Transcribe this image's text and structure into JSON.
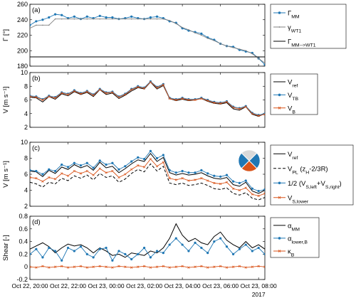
{
  "figure": {
    "year_label": "2017",
    "xticks": [
      "Oct 22, 20:00",
      "Oct 22, 22:00",
      "Oct 23, 00:00",
      "Oct 23, 02:00",
      "Oct 23, 04:00",
      "Oct 23, 06:00",
      "Oct 23, 08:00"
    ]
  },
  "colors": {
    "blue": "#1f77b4",
    "orange": "#d95319",
    "black": "#000000",
    "gray": "#808080"
  },
  "chart_data": [
    {
      "panel": "(a)",
      "type": "line",
      "ylabel": "Γ [°]",
      "ylim": [
        180,
        260
      ],
      "yticks": [
        "180",
        "200",
        "220",
        "240",
        "260"
      ],
      "xlim": [
        0,
        12.33
      ],
      "x_unit": "hours after Oct 22, 20:00",
      "legend": [
        "Γ_MM",
        "γ_WT1",
        "Γ_MM→WT1"
      ],
      "series": [
        {
          "name": "Γ_MM",
          "color": "blue",
          "marker": "dot",
          "x": [
            0,
            0.33,
            0.67,
            1,
            1.33,
            1.67,
            2,
            2.33,
            2.67,
            3,
            3.33,
            3.67,
            4,
            4.33,
            4.67,
            5,
            5.33,
            5.67,
            6,
            6.33,
            6.67,
            7,
            7.33,
            7.67,
            8,
            8.33,
            8.67,
            9,
            9.33,
            9.67,
            10,
            10.33,
            10.67,
            11,
            11.33,
            11.67,
            12,
            12.33
          ],
          "y": [
            233,
            238,
            240,
            243,
            247,
            246,
            242,
            244,
            241,
            244,
            242,
            245,
            243,
            243,
            241,
            242,
            244,
            242,
            241,
            243,
            244,
            242,
            238,
            236,
            229,
            226,
            224,
            222,
            217,
            214,
            209,
            206,
            205,
            201,
            199,
            197,
            190,
            182
          ]
        },
        {
          "name": "γ_WT1",
          "color": "gray",
          "marker": "small-dot",
          "x": [
            0,
            0.33,
            0.67,
            1,
            1.33,
            1.67,
            2,
            2.33,
            2.67,
            3,
            3.33,
            3.67,
            4,
            4.33,
            4.67,
            5,
            5.33,
            5.67,
            6,
            6.33,
            6.67,
            7,
            7.33,
            7.67,
            8,
            8.33,
            8.67,
            9,
            9.33,
            9.67,
            10,
            10.33,
            10.67,
            11,
            11.33,
            11.67,
            12,
            12.33
          ],
          "y": [
            229,
            233,
            233,
            233,
            241,
            241,
            241,
            241,
            241,
            241,
            241,
            241,
            241,
            241,
            241,
            241,
            241,
            241,
            241,
            241,
            241,
            241,
            239,
            235,
            230,
            227,
            223,
            220,
            216,
            213,
            209,
            206,
            204,
            202,
            200,
            196,
            190,
            184
          ]
        },
        {
          "name": "Γ_MM→WT1",
          "color": "black",
          "marker": "none",
          "x": [
            0,
            12.33
          ],
          "y": [
            192,
            192
          ]
        }
      ]
    },
    {
      "panel": "(b)",
      "type": "line",
      "ylabel": "V [m s⁻¹]",
      "ylim": [
        2,
        10
      ],
      "yticks": [
        "2",
        "4",
        "6",
        "8",
        "10"
      ],
      "xlim": [
        0,
        12.33
      ],
      "legend": [
        "V_ref",
        "V_TB",
        "V_B"
      ],
      "series": [
        {
          "name": "V_ref",
          "color": "black",
          "marker": "none",
          "x": [
            0,
            0.33,
            0.67,
            1,
            1.33,
            1.67,
            2,
            2.33,
            2.67,
            3,
            3.33,
            3.67,
            4,
            4.33,
            4.67,
            5,
            5.33,
            5.67,
            6,
            6.33,
            6.67,
            7,
            7.33,
            7.67,
            8,
            8.33,
            8.67,
            9,
            9.33,
            9.67,
            10,
            10.33,
            10.67,
            11,
            11.33,
            11.67,
            12,
            12.33
          ],
          "y": [
            6.4,
            6.3,
            5.7,
            6.5,
            6.1,
            6.9,
            6.6,
            7.2,
            6.8,
            7.1,
            6.5,
            7.5,
            6.8,
            7.0,
            6.2,
            6.7,
            7.3,
            7.8,
            7.6,
            8.6,
            7.6,
            8.1,
            6.2,
            5.9,
            6.1,
            5.9,
            6.0,
            6.2,
            5.8,
            5.5,
            5.4,
            5.6,
            4.7,
            4.5,
            5.0,
            3.9,
            3.6,
            4.0
          ]
        },
        {
          "name": "V_TB",
          "color": "blue",
          "marker": "dot",
          "x": [
            0,
            0.33,
            0.67,
            1,
            1.33,
            1.67,
            2,
            2.33,
            2.67,
            3,
            3.33,
            3.67,
            4,
            4.33,
            4.67,
            5,
            5.33,
            5.67,
            6,
            6.33,
            6.67,
            7,
            7.33,
            7.67,
            8,
            8.33,
            8.67,
            9,
            9.33,
            9.67,
            10,
            10.33,
            10.67,
            11,
            11.33,
            11.67,
            12,
            12.33
          ],
          "y": [
            6.6,
            6.5,
            6.1,
            6.6,
            6.4,
            7.1,
            6.9,
            7.4,
            7.0,
            7.3,
            6.8,
            7.6,
            7.1,
            7.2,
            6.5,
            6.9,
            7.6,
            8.0,
            7.8,
            8.7,
            7.9,
            8.3,
            6.3,
            6.1,
            6.3,
            6.1,
            6.1,
            6.3,
            6.0,
            5.7,
            5.6,
            5.8,
            5.0,
            4.8,
            5.1,
            4.1,
            3.8,
            4.0
          ]
        },
        {
          "name": "V_B",
          "color": "orange",
          "marker": "cross",
          "x": [
            0,
            0.33,
            0.67,
            1,
            1.33,
            1.67,
            2,
            2.33,
            2.67,
            3,
            3.33,
            3.67,
            4,
            4.33,
            4.67,
            5,
            5.33,
            5.67,
            6,
            6.33,
            6.67,
            7,
            7.33,
            7.67,
            8,
            8.33,
            8.67,
            9,
            9.33,
            9.67,
            10,
            10.33,
            10.67,
            11,
            11.33,
            11.67,
            12,
            12.33
          ],
          "y": [
            6.5,
            6.4,
            6.0,
            6.5,
            6.3,
            7.0,
            6.8,
            7.3,
            6.9,
            7.2,
            6.7,
            7.5,
            7.0,
            7.1,
            6.4,
            6.8,
            7.5,
            7.9,
            7.7,
            8.6,
            7.8,
            8.2,
            6.2,
            6.0,
            6.2,
            6.0,
            6.0,
            6.2,
            5.9,
            5.6,
            5.5,
            5.7,
            4.9,
            4.7,
            5.0,
            4.0,
            3.7,
            3.9
          ]
        }
      ]
    },
    {
      "panel": "(c)",
      "type": "line",
      "ylabel": "V [m s⁻¹]",
      "ylim": [
        2,
        10
      ],
      "yticks": [
        "2",
        "4",
        "6",
        "8",
        "10"
      ],
      "xlim": [
        0,
        12.33
      ],
      "legend": [
        "V_ref",
        "V_PL (z_H-2/3R)",
        "1/2 (V_S,left+V_S,right)",
        "V_S,lower"
      ],
      "series": [
        {
          "name": "V_ref",
          "color": "black",
          "marker": "none",
          "dash": "solid",
          "x": [
            0,
            0.33,
            0.67,
            1,
            1.33,
            1.67,
            2,
            2.33,
            2.67,
            3,
            3.33,
            3.67,
            4,
            4.33,
            4.67,
            5,
            5.33,
            5.67,
            6,
            6.33,
            6.67,
            7,
            7.33,
            7.67,
            8,
            8.33,
            8.67,
            9,
            9.33,
            9.67,
            10,
            10.33,
            10.67,
            11,
            11.33,
            11.67,
            12,
            12.33
          ],
          "y": [
            6.4,
            6.3,
            5.7,
            6.5,
            6.1,
            6.9,
            6.6,
            7.2,
            6.8,
            7.1,
            6.5,
            7.5,
            6.8,
            7.0,
            6.2,
            6.7,
            7.3,
            7.8,
            7.6,
            8.6,
            7.6,
            8.1,
            6.2,
            5.9,
            6.1,
            5.9,
            6.0,
            6.2,
            5.8,
            5.5,
            5.4,
            5.6,
            4.7,
            4.5,
            5.0,
            3.9,
            3.6,
            4.0
          ]
        },
        {
          "name": "V_PL (z_H-2/3R)",
          "color": "black",
          "marker": "none",
          "dash": "dashed",
          "x": [
            0,
            0.33,
            0.67,
            1,
            1.33,
            1.67,
            2,
            2.33,
            2.67,
            3,
            3.33,
            3.67,
            4,
            4.33,
            4.67,
            5,
            5.33,
            5.67,
            6,
            6.33,
            6.67,
            7,
            7.33,
            7.67,
            8,
            8.33,
            8.67,
            9,
            9.33,
            9.67,
            10,
            10.33,
            10.67,
            11,
            11.33,
            11.67,
            12,
            12.33
          ],
          "y": [
            5.0,
            4.8,
            4.4,
            5.0,
            4.8,
            5.5,
            5.2,
            5.8,
            5.5,
            5.9,
            5.3,
            6.1,
            5.6,
            5.8,
            5.0,
            5.4,
            6.1,
            6.6,
            6.3,
            7.3,
            6.4,
            7.0,
            4.9,
            4.7,
            4.9,
            4.6,
            4.7,
            4.9,
            4.6,
            4.2,
            4.1,
            4.3,
            3.6,
            3.4,
            3.7,
            3.0,
            2.8,
            3.1
          ]
        },
        {
          "name": "1/2 (V_S,left+V_S,right)",
          "color": "blue",
          "marker": "dot",
          "dash": "solid",
          "x": [
            0,
            0.33,
            0.67,
            1,
            1.33,
            1.67,
            2,
            2.33,
            2.67,
            3,
            3.33,
            3.67,
            4,
            4.33,
            4.67,
            5,
            5.33,
            5.67,
            6,
            6.33,
            6.67,
            7,
            7.33,
            7.67,
            8,
            8.33,
            8.67,
            9,
            9.33,
            9.67,
            10,
            10.33,
            10.67,
            11,
            11.33,
            11.67,
            12,
            12.33
          ],
          "y": [
            6.5,
            6.4,
            6.0,
            6.6,
            6.4,
            7.2,
            6.9,
            7.4,
            7.1,
            7.4,
            6.8,
            7.7,
            7.2,
            7.4,
            6.6,
            7.0,
            7.6,
            8.1,
            7.9,
            8.9,
            8.0,
            8.4,
            6.5,
            6.2,
            6.4,
            6.2,
            6.2,
            6.5,
            6.1,
            5.8,
            5.7,
            5.9,
            5.1,
            4.9,
            5.2,
            4.2,
            3.9,
            4.1
          ]
        },
        {
          "name": "V_S,lower",
          "color": "orange",
          "marker": "cross",
          "dash": "solid",
          "x": [
            0,
            0.33,
            0.67,
            1,
            1.33,
            1.67,
            2,
            2.33,
            2.67,
            3,
            3.33,
            3.67,
            4,
            4.33,
            4.67,
            5,
            5.33,
            5.67,
            6,
            6.33,
            6.67,
            7,
            7.33,
            7.67,
            8,
            8.33,
            8.67,
            9,
            9.33,
            9.67,
            10,
            10.33,
            10.67,
            11,
            11.33,
            11.67,
            12,
            12.33
          ],
          "y": [
            5.6,
            5.5,
            5.1,
            5.6,
            5.4,
            6.1,
            5.8,
            6.4,
            6.1,
            6.4,
            5.9,
            6.7,
            6.2,
            6.4,
            5.6,
            6.0,
            6.6,
            7.1,
            6.9,
            7.9,
            7.0,
            7.5,
            5.5,
            5.3,
            5.5,
            5.2,
            5.3,
            5.5,
            5.2,
            4.9,
            4.8,
            5.0,
            4.2,
            4.0,
            4.3,
            3.5,
            3.3,
            3.6
          ]
        }
      ]
    },
    {
      "panel": "(d)",
      "type": "line",
      "ylabel": "Shear [-]",
      "ylim": [
        -0.2,
        0.8
      ],
      "yticks": [
        "-0.2",
        "0",
        "0.2",
        "0.4",
        "0.6",
        "0.8"
      ],
      "xlim": [
        0,
        12.33
      ],
      "legend": [
        "α_MM",
        "α_lower,B",
        "κ_B"
      ],
      "series": [
        {
          "name": "α_MM",
          "color": "black",
          "marker": "none",
          "x": [
            0,
            0.33,
            0.67,
            1,
            1.33,
            1.67,
            2,
            2.33,
            2.67,
            3,
            3.33,
            3.67,
            4,
            4.33,
            4.67,
            5,
            5.33,
            5.67,
            6,
            6.33,
            6.67,
            7,
            7.33,
            7.67,
            8,
            8.33,
            8.67,
            9,
            9.33,
            9.67,
            10,
            10.33,
            10.67,
            11,
            11.33,
            11.67,
            12,
            12.33
          ],
          "y": [
            0.28,
            0.33,
            0.38,
            0.32,
            0.22,
            0.3,
            0.36,
            0.33,
            0.35,
            0.3,
            0.22,
            0.3,
            0.25,
            0.18,
            0.2,
            0.15,
            0.22,
            0.2,
            0.18,
            0.25,
            0.22,
            0.3,
            0.45,
            0.68,
            0.5,
            0.4,
            0.45,
            0.38,
            0.35,
            0.48,
            0.55,
            0.42,
            0.35,
            0.3,
            0.4,
            0.3,
            0.35,
            0.28
          ]
        },
        {
          "name": "α_lower,B",
          "color": "blue",
          "marker": "dot",
          "x": [
            0,
            0.33,
            0.67,
            1,
            1.33,
            1.67,
            2,
            2.33,
            2.67,
            3,
            3.33,
            3.67,
            4,
            4.33,
            4.67,
            5,
            5.33,
            5.67,
            6,
            6.33,
            6.67,
            7,
            7.33,
            7.67,
            8,
            8.33,
            8.67,
            9,
            9.33,
            9.67,
            10,
            10.33,
            10.67,
            11,
            11.33,
            11.67,
            12,
            12.33
          ],
          "y": [
            0.2,
            0.28,
            0.15,
            0.3,
            0.25,
            0.1,
            0.3,
            0.25,
            0.32,
            0.2,
            0.15,
            0.28,
            0.3,
            0.1,
            0.25,
            0.2,
            0.12,
            0.2,
            0.3,
            0.15,
            0.25,
            0.22,
            0.35,
            0.45,
            0.35,
            0.25,
            0.38,
            0.3,
            0.22,
            0.4,
            0.45,
            0.32,
            0.2,
            0.28,
            0.35,
            0.25,
            0.3,
            0.2
          ]
        },
        {
          "name": "κ_B",
          "color": "orange",
          "marker": "cross",
          "x": [
            0,
            0.33,
            0.67,
            1,
            1.33,
            1.67,
            2,
            2.33,
            2.67,
            3,
            3.33,
            3.67,
            4,
            4.33,
            4.67,
            5,
            5.33,
            5.67,
            6,
            6.33,
            6.67,
            7,
            7.33,
            7.67,
            8,
            8.33,
            8.67,
            9,
            9.33,
            9.67,
            10,
            10.33,
            10.67,
            11,
            11.33,
            11.67,
            12,
            12.33
          ],
          "y": [
            0.0,
            -0.01,
            0.01,
            -0.01,
            0.0,
            0.01,
            -0.01,
            0.0,
            0.01,
            -0.01,
            0.0,
            0.01,
            0.0,
            -0.01,
            0.01,
            0.0,
            -0.01,
            0.0,
            0.01,
            -0.01,
            0.0,
            0.01,
            -0.01,
            0.0,
            0.01,
            -0.01,
            0.0,
            0.01,
            -0.01,
            0.0,
            0.01,
            -0.01,
            0.0,
            0.01,
            -0.01,
            0.0,
            0.01,
            0.0
          ]
        }
      ]
    }
  ]
}
